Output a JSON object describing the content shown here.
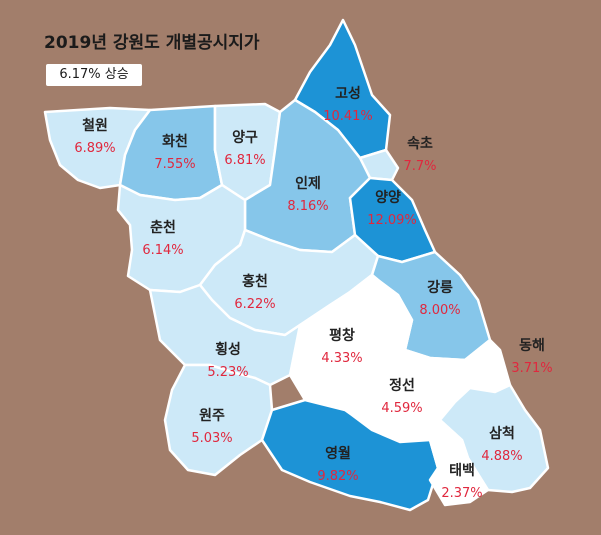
{
  "title": "2019년 강원도 개별공시지가",
  "summary": "6.17% 상승",
  "colors": {
    "background": "#a27e6b",
    "light": "#cde9f8",
    "medium": "#86c6ea",
    "dark": "#1d93d6",
    "white": "#ffffff",
    "value_text": "#e0283e"
  },
  "regions": {
    "cheorwon": {
      "name": "철원",
      "value": "6.89%"
    },
    "hwacheon": {
      "name": "화천",
      "value": "7.55%"
    },
    "yanggu": {
      "name": "양구",
      "value": "6.81%"
    },
    "goseong": {
      "name": "고성",
      "value": "10.41%"
    },
    "sokcho": {
      "name": "속초",
      "value": "7.7%"
    },
    "inje": {
      "name": "인제",
      "value": "8.16%"
    },
    "yangyang": {
      "name": "양양",
      "value": "12.09%"
    },
    "chuncheon": {
      "name": "춘천",
      "value": "6.14%"
    },
    "hongcheon": {
      "name": "홍천",
      "value": "6.22%"
    },
    "gangneung": {
      "name": "강릉",
      "value": "8.00%"
    },
    "pyeongchang": {
      "name": "평창",
      "value": "4.33%"
    },
    "hoengseong": {
      "name": "횡성",
      "value": "5.23%"
    },
    "donghae": {
      "name": "동해",
      "value": "3.71%"
    },
    "jeongseon": {
      "name": "정선",
      "value": "4.59%"
    },
    "wonju": {
      "name": "원주",
      "value": "5.03%"
    },
    "samcheok": {
      "name": "삼척",
      "value": "4.88%"
    },
    "yeongwol": {
      "name": "영월",
      "value": "9.82%"
    },
    "taebaek": {
      "name": "태백",
      "value": "2.37%"
    }
  }
}
